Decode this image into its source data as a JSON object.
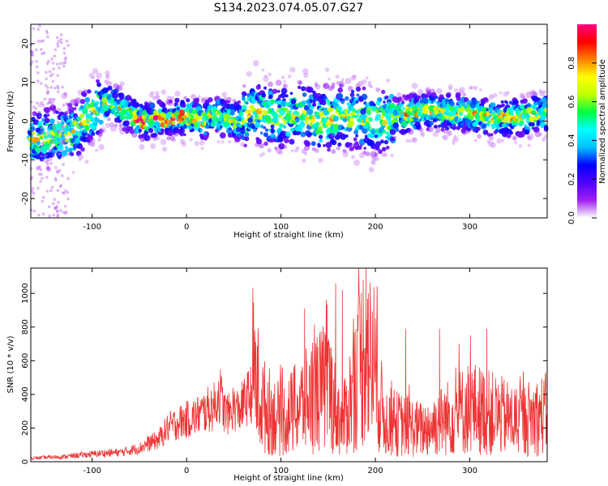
{
  "figure": {
    "title": "S134.2023.074.05.07.G27"
  },
  "chart_data": [
    {
      "type": "heatmap",
      "xlabel": "Height of straight line (km)",
      "ylabel": "Frequency (Hz)",
      "xlim": [
        -165,
        382
      ],
      "ylim": [
        -25,
        25
      ],
      "x_ticks": [
        "-100",
        "0",
        "100",
        "200",
        "300"
      ],
      "y_ticks": [
        "-20",
        "-10",
        "0",
        "10",
        "20"
      ],
      "colorbar": {
        "label": "Normalized spectral amplitude",
        "range": [
          0.0,
          1.0
        ],
        "ticks": [
          "0.0",
          "0.2",
          "0.4",
          "0.6",
          "0.8"
        ],
        "colormap": [
          "#ffffff",
          "#a020f0",
          "#5000ff",
          "#0000ff",
          "#00c0ff",
          "#00ffff",
          "#00ff40",
          "#c0ff00",
          "#ffff00",
          "#ff8000",
          "#ff0000",
          "#ff0080"
        ]
      },
      "dominant_frequency_trace": {
        "x": [
          -165,
          -140,
          -120,
          -100,
          -85,
          -75,
          -60,
          -50,
          -40,
          -30,
          -20,
          -10,
          0,
          10,
          20,
          30,
          40,
          50,
          60,
          70,
          80,
          100,
          120,
          140,
          160,
          180,
          200,
          220,
          240,
          260,
          280,
          300,
          320,
          340,
          360,
          370,
          380
        ],
        "y": [
          -5,
          -4,
          -3,
          2,
          5,
          4,
          2,
          0,
          0,
          1,
          0,
          1,
          1,
          1,
          0,
          2,
          1,
          0,
          0,
          3,
          2,
          1,
          2,
          0,
          1,
          1,
          0,
          1,
          2,
          3,
          2,
          2,
          1,
          1,
          1,
          2,
          2
        ],
        "peak_amplitude": 0.9
      }
    },
    {
      "type": "line",
      "xlabel": "Height of straight line (km)",
      "ylabel": "SNR (10 * v/v)",
      "xlim": [
        -165,
        382
      ],
      "ylim": [
        0,
        1150
      ],
      "x_ticks": [
        "-100",
        "0",
        "100",
        "200",
        "300"
      ],
      "y_ticks": [
        "0",
        "200",
        "400",
        "600",
        "800",
        "1000"
      ],
      "color": "#ee3333",
      "series": [
        {
          "x": [
            -165,
            -150,
            -130,
            -110,
            -90,
            -70,
            -50,
            -40,
            -30,
            -20,
            -10,
            0,
            10,
            20,
            30,
            35,
            40,
            45,
            50,
            55,
            60,
            70,
            80,
            100,
            125,
            150,
            165,
            190,
            210,
            250,
            300,
            350,
            382
          ],
          "y": [
            20,
            25,
            30,
            40,
            50,
            55,
            80,
            110,
            130,
            200,
            230,
            250,
            270,
            300,
            330,
            410,
            300,
            280,
            330,
            300,
            340,
            420,
            250,
            180,
            260,
            340,
            160,
            520,
            180,
            140,
            240,
            180,
            210
          ],
          "peaks": [
            {
              "x": 125,
              "y": 910
            },
            {
              "x": 158,
              "y": 1060
            },
            {
              "x": 165,
              "y": 1020
            },
            {
              "x": 190,
              "y": 1150
            },
            {
              "x": 200,
              "y": 850
            },
            {
              "x": 232,
              "y": 790
            },
            {
              "x": 268,
              "y": 790
            },
            {
              "x": 318,
              "y": 790
            }
          ]
        }
      ]
    }
  ]
}
